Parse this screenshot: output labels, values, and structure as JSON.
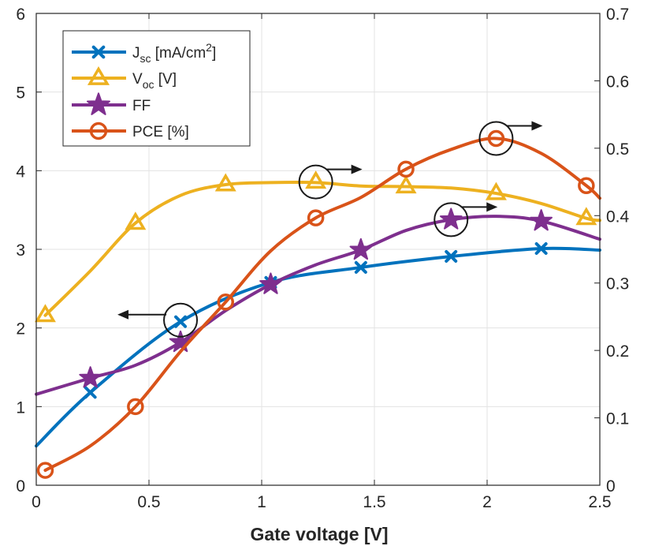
{
  "chart_data": {
    "type": "line",
    "xlabel": "Gate voltage [V]",
    "xlim": [
      0,
      2.5
    ],
    "ylim_left": [
      0,
      6
    ],
    "ylim_right": [
      0,
      0.7
    ],
    "x_ticks": [
      "0",
      "0.5",
      "1",
      "1.5",
      "2",
      "2.5"
    ],
    "y_left_ticks": [
      "0",
      "1",
      "2",
      "3",
      "4",
      "5",
      "6"
    ],
    "y_right_ticks": [
      "0",
      "0.1",
      "0.2",
      "0.3",
      "0.4",
      "0.5",
      "0.6",
      "0.7"
    ],
    "grid": true,
    "legend_position": "top-left",
    "series": [
      {
        "id": "jsc",
        "legend": {
          "prefix": "J",
          "sub": "sc",
          "text": " [mA/cm",
          "sup": "2",
          "suffix": "]"
        },
        "axis": "left",
        "color": "#0072BD",
        "marker": "x",
        "markers": [
          [
            0.24,
            1.18
          ],
          [
            0.64,
            2.08
          ],
          [
            1.04,
            2.58
          ],
          [
            1.44,
            2.77
          ],
          [
            1.84,
            2.91
          ],
          [
            2.24,
            3.01
          ]
        ],
        "curve": [
          [
            0.0,
            0.5
          ],
          [
            0.24,
            1.18
          ],
          [
            0.64,
            2.08
          ],
          [
            1.04,
            2.58
          ],
          [
            1.44,
            2.77
          ],
          [
            1.84,
            2.91
          ],
          [
            2.24,
            3.01
          ],
          [
            2.5,
            2.99
          ]
        ]
      },
      {
        "id": "voc",
        "legend": {
          "prefix": "V",
          "sub": "oc",
          "text": " [V]",
          "sup": "",
          "suffix": ""
        },
        "axis": "right",
        "color": "#EDB120",
        "marker": "triangle",
        "markers": [
          [
            0.04,
            0.252
          ],
          [
            0.44,
            0.389
          ],
          [
            0.84,
            0.446
          ],
          [
            1.24,
            0.45
          ],
          [
            1.64,
            0.443
          ],
          [
            2.04,
            0.433
          ],
          [
            2.44,
            0.396
          ]
        ],
        "curve": [
          [
            0.04,
            0.252
          ],
          [
            0.24,
            0.318
          ],
          [
            0.44,
            0.389
          ],
          [
            0.64,
            0.43
          ],
          [
            0.84,
            0.446
          ],
          [
            1.04,
            0.449
          ],
          [
            1.24,
            0.449
          ],
          [
            1.44,
            0.444
          ],
          [
            1.64,
            0.443
          ],
          [
            1.84,
            0.441
          ],
          [
            2.04,
            0.433
          ],
          [
            2.24,
            0.418
          ],
          [
            2.44,
            0.396
          ],
          [
            2.5,
            0.393
          ]
        ]
      },
      {
        "id": "ff",
        "legend": {
          "prefix": "FF",
          "sub": "",
          "text": "",
          "sup": "",
          "suffix": ""
        },
        "axis": "right",
        "color": "#7E2F8E",
        "marker": "star",
        "markers": [
          [
            0.24,
            0.159
          ],
          [
            0.64,
            0.212
          ],
          [
            1.04,
            0.298
          ],
          [
            1.44,
            0.349
          ],
          [
            1.84,
            0.394
          ],
          [
            2.24,
            0.392
          ]
        ],
        "curve": [
          [
            0.0,
            0.135
          ],
          [
            0.24,
            0.159
          ],
          [
            0.44,
            0.178
          ],
          [
            0.64,
            0.212
          ],
          [
            0.84,
            0.259
          ],
          [
            1.04,
            0.298
          ],
          [
            1.24,
            0.327
          ],
          [
            1.44,
            0.349
          ],
          [
            1.64,
            0.378
          ],
          [
            1.84,
            0.394
          ],
          [
            2.04,
            0.399
          ],
          [
            2.24,
            0.392
          ],
          [
            2.5,
            0.365
          ]
        ]
      },
      {
        "id": "pce",
        "legend": {
          "prefix": "PCE [%]",
          "sub": "",
          "text": "",
          "sup": "",
          "suffix": ""
        },
        "axis": "left",
        "color": "#D95319",
        "marker": "circle",
        "markers": [
          [
            0.04,
            0.19
          ],
          [
            0.44,
            1.0
          ],
          [
            0.84,
            2.33
          ],
          [
            1.24,
            3.4
          ],
          [
            1.64,
            4.02
          ],
          [
            2.04,
            4.41
          ],
          [
            2.44,
            3.81
          ]
        ],
        "curve": [
          [
            0.04,
            0.19
          ],
          [
            0.24,
            0.5
          ],
          [
            0.44,
            1.0
          ],
          [
            0.64,
            1.7
          ],
          [
            0.84,
            2.33
          ],
          [
            1.04,
            2.98
          ],
          [
            1.24,
            3.4
          ],
          [
            1.44,
            3.66
          ],
          [
            1.64,
            4.02
          ],
          [
            1.84,
            4.27
          ],
          [
            2.04,
            4.41
          ],
          [
            2.24,
            4.22
          ],
          [
            2.44,
            3.81
          ],
          [
            2.5,
            3.65
          ]
        ]
      }
    ],
    "annotations": [
      {
        "name": "jsc-left-axis-indicator",
        "x": 0.64,
        "y": 2.1,
        "axis": "left",
        "direction": "left"
      },
      {
        "name": "voc-right-axis-indicator",
        "x": 1.24,
        "y": 0.45,
        "axis": "right",
        "direction": "right"
      },
      {
        "name": "ff-right-axis-indicator",
        "x": 1.84,
        "y": 0.394,
        "axis": "right",
        "direction": "right"
      },
      {
        "name": "pce-right-axis-indicator",
        "x": 2.04,
        "y": 4.41,
        "axis": "left",
        "direction": "right"
      }
    ]
  }
}
